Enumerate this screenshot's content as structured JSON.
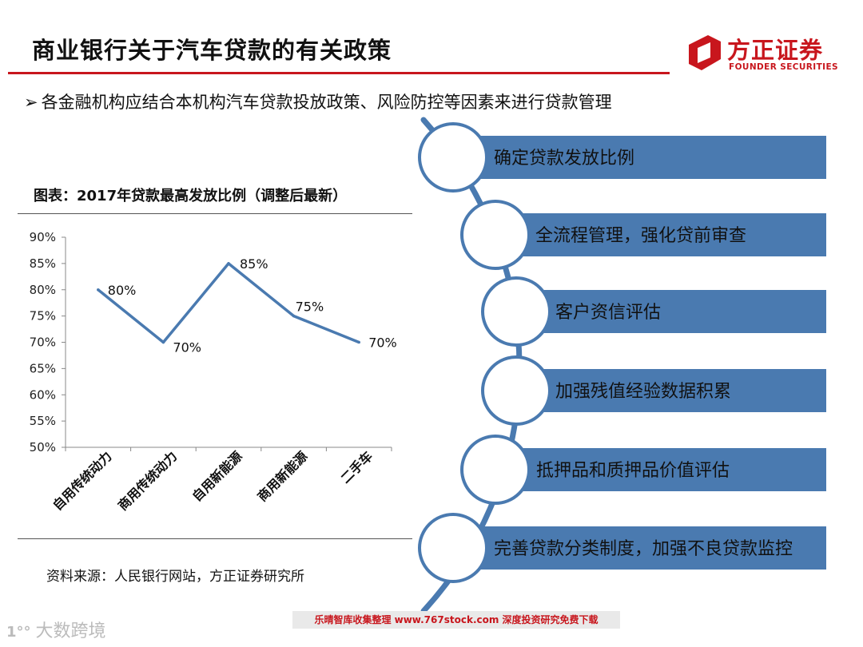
{
  "header": {
    "title": "商业银行关于汽车贷款的有关政策",
    "bullet_marker": "➢",
    "bullet": "各金融机构应结合本机构汽车贷款投放政策、风险防控等因素来进行贷款管理"
  },
  "logo": {
    "cn": "方正证券",
    "en": "FOUNDER SECURITIES",
    "color": "#c8161d"
  },
  "chart_data": {
    "type": "line",
    "title": "图表：2017年贷款最高发放比例（调整后最新）",
    "categories": [
      "自用传统动力",
      "商用传统动力",
      "自用新能源",
      "商用新能源",
      "二手车"
    ],
    "values": [
      80,
      70,
      85,
      75,
      70
    ],
    "data_labels": [
      "80%",
      "70%",
      "85%",
      "75%",
      "70%"
    ],
    "ylim": [
      50,
      90
    ],
    "yticks": [
      "50%",
      "55%",
      "60%",
      "65%",
      "70%",
      "75%",
      "80%",
      "85%",
      "90%"
    ],
    "xlabel": "",
    "ylabel": "",
    "grid": false,
    "legend": "none",
    "line_color": "#4a7ab0"
  },
  "source": "资料来源：人民银行网站，方正证券研究所",
  "steps": {
    "color": "#4a7ab0",
    "items": [
      "确定贷款发放比例",
      "全流程管理，强化贷前审查",
      "客户资信评估",
      "加强残值经验数据积累",
      "抵押品和质押品价值评估",
      "完善贷款分类制度，加强不良贷款监控"
    ]
  },
  "footer": {
    "banner": "乐晴智库收集整理 www.767stock.com 深度投资研究免费下载",
    "watermark_mark": "1°°",
    "watermark_text": "大数跨境"
  }
}
